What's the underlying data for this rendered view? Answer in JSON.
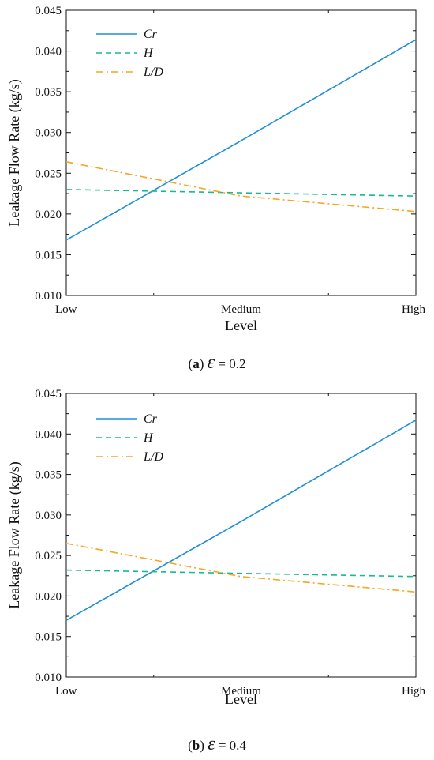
{
  "chart_data": [
    {
      "type": "line",
      "caption": {
        "letter": "a",
        "symbol": "ε",
        "value_text": "= 0.2"
      },
      "xlabel": "Level",
      "ylabel": "Leakage Flow Rate (kg/s)",
      "categories": [
        "Low",
        "Medium",
        "High"
      ],
      "ylim": [
        0.01,
        0.045
      ],
      "yticks": [
        0.01,
        0.015,
        0.02,
        0.025,
        0.03,
        0.035,
        0.04,
        0.045
      ],
      "ytick_labels": [
        "0.010",
        "0.015",
        "0.020",
        "0.025",
        "0.030",
        "0.035",
        "0.040",
        "0.045"
      ],
      "grid": false,
      "legend_position": "top-left",
      "series": [
        {
          "name": "Cr",
          "style": "solid",
          "color": "#1f8fd6",
          "values": [
            0.0168,
            0.029,
            0.0414
          ]
        },
        {
          "name": "H",
          "style": "dashed",
          "color": "#18b890",
          "values": [
            0.023,
            0.0226,
            0.0222
          ]
        },
        {
          "name": "L/D",
          "style": "dashdot",
          "color": "#f5a623",
          "values": [
            0.0264,
            0.0222,
            0.0203
          ]
        }
      ]
    },
    {
      "type": "line",
      "caption": {
        "letter": "b",
        "symbol": "ε",
        "value_text": "= 0.4"
      },
      "xlabel": "Level",
      "ylabel": "Leakage Flow Rate (kg/s)",
      "categories": [
        "Low",
        "Medium",
        "High"
      ],
      "ylim": [
        0.01,
        0.045
      ],
      "yticks": [
        0.01,
        0.015,
        0.02,
        0.025,
        0.03,
        0.035,
        0.04,
        0.045
      ],
      "ytick_labels": [
        "0.010",
        "0.015",
        "0.020",
        "0.025",
        "0.030",
        "0.035",
        "0.040",
        "0.045"
      ],
      "grid": false,
      "legend_position": "top-left",
      "series": [
        {
          "name": "Cr",
          "style": "solid",
          "color": "#1f8fd6",
          "values": [
            0.017,
            0.0292,
            0.0417
          ]
        },
        {
          "name": "H",
          "style": "dashed",
          "color": "#18b890",
          "values": [
            0.0232,
            0.0228,
            0.0224
          ]
        },
        {
          "name": "L/D",
          "style": "dashdot",
          "color": "#f5a623",
          "values": [
            0.0265,
            0.0224,
            0.0205
          ]
        }
      ]
    }
  ]
}
